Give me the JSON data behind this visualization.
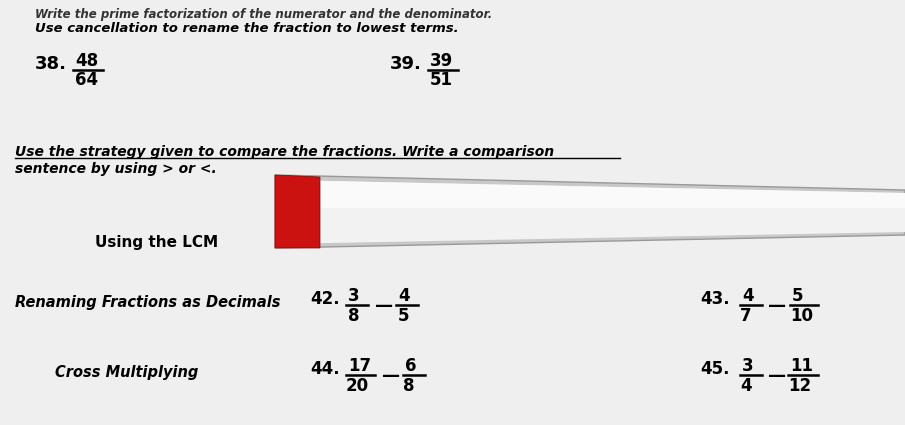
{
  "bg_color": "#f0f0f0",
  "top_text_partial": "Write the prime factorization of the numerator and the denominator.",
  "top_text": "Use cancellation to rename the fraction to lowest terms.",
  "item38_label": "38.",
  "item38_num": "48",
  "item38_den": "64",
  "item39_label": "39.",
  "item39_num": "39",
  "item39_den": "51",
  "mid_text1": "Use the strategy given to compare the fractions. Write a comparison",
  "mid_text2": "sentence by using > or <.",
  "lcm_label": "Using the LCM",
  "decimals_label": "Renaming Fractions as Decimals",
  "item42_label": "42.",
  "item42_frac1_num": "3",
  "item42_frac1_den": "8",
  "item42_frac2_num": "4",
  "item42_frac2_den": "5",
  "item43_label": "43.",
  "item43_frac1_num": "4",
  "item43_frac1_den": "7",
  "item43_frac2_num": "5",
  "item43_frac2_den": "10",
  "cross_label": "Cross Multiplying",
  "item44_label": "44.",
  "item44_frac1_num": "17",
  "item44_frac1_den": "20",
  "item44_frac2_num": "6",
  "item44_frac2_den": "8",
  "item45_label": "45.",
  "item45_frac1_num": "3",
  "item45_frac1_den": "4",
  "item45_frac2_num": "11",
  "item45_frac2_den": "12",
  "dash": "—"
}
